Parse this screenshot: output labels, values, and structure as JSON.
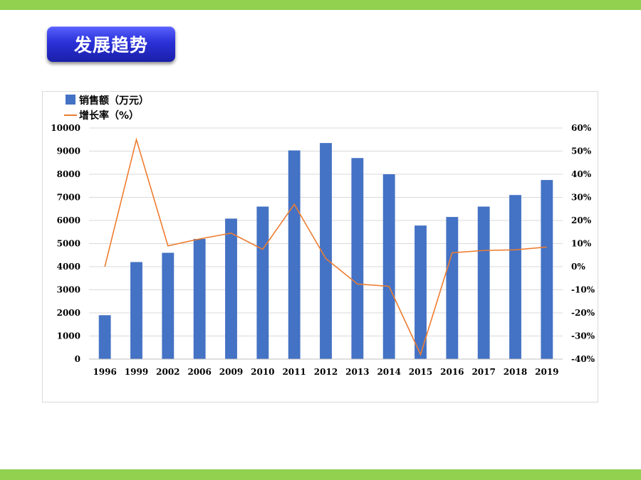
{
  "header": {
    "title": "发展趋势"
  },
  "colors": {
    "top_bar": "#92d050",
    "title_bg": "#2a31d8",
    "bar_series": "#4472c4",
    "line_series": "#ed7d31",
    "grid": "#d9d9d9"
  },
  "chart_data": {
    "type": "bar",
    "categories": [
      "1996",
      "1999",
      "2002",
      "2006",
      "2009",
      "2010",
      "2011",
      "2012",
      "2013",
      "2014",
      "2015",
      "2016",
      "2017",
      "2018",
      "2019"
    ],
    "series": [
      {
        "name": "销售额（万元）",
        "type": "bar",
        "axis": "left",
        "values": [
          1900,
          4200,
          4600,
          5200,
          6080,
          6600,
          9030,
          9350,
          8700,
          8000,
          5780,
          6150,
          6600,
          7100,
          7750
        ]
      },
      {
        "name": "增长率（%）",
        "type": "line",
        "axis": "right",
        "values": [
          0,
          55,
          9,
          12,
          14.5,
          7.5,
          27,
          3.5,
          -7.5,
          -8.5,
          -38,
          6,
          7,
          7.3,
          8.5
        ]
      }
    ],
    "y_left": {
      "min": 0,
      "max": 10000,
      "ticks": [
        "0",
        "1000",
        "2000",
        "3000",
        "4000",
        "5000",
        "6000",
        "7000",
        "8000",
        "9000",
        "10000"
      ]
    },
    "y_right": {
      "min": -40,
      "max": 60,
      "ticks": [
        "-40%",
        "-30%",
        "-20%",
        "-10%",
        "0%",
        "10%",
        "20%",
        "30%",
        "40%",
        "50%",
        "60%"
      ]
    },
    "grid": true,
    "legend_position": "top-left"
  }
}
